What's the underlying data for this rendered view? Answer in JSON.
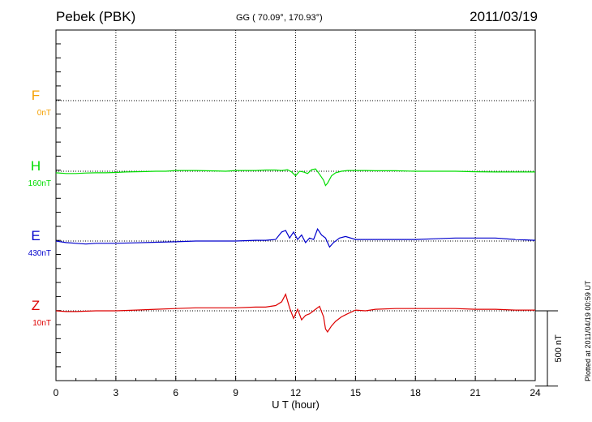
{
  "header": {
    "station": "Pebek (PBK)",
    "coords": "GG ( 70.09°, 170.93°)",
    "date": "2011/03/19"
  },
  "plotted_note": "Plotted at 2011/04/19 00:59 UT",
  "chart_data": {
    "type": "line",
    "xlabel": "U T (hour)",
    "xlim": [
      0,
      24
    ],
    "x_ticks": [
      0,
      3,
      6,
      9,
      12,
      15,
      18,
      21,
      24
    ],
    "grid": true,
    "scale_bar": {
      "label": "500 nT",
      "value_nT": 500
    },
    "series": [
      {
        "name": "F",
        "offset_label": "0nT",
        "color": "#f5a000",
        "x": [],
        "values": []
      },
      {
        "name": "H",
        "offset_label": "160nT",
        "color": "#00dd00",
        "x": [
          0,
          0.5,
          1,
          1.5,
          2,
          2.5,
          3,
          3.5,
          4,
          4.5,
          5,
          5.5,
          6,
          6.5,
          7,
          7.5,
          8,
          8.5,
          9,
          9.5,
          10,
          10.5,
          11,
          11.3,
          11.6,
          11.8,
          12,
          12.2,
          12.4,
          12.6,
          12.8,
          13,
          13.2,
          13.4,
          13.5,
          13.6,
          13.8,
          14,
          14.3,
          14.6,
          15,
          15.5,
          16,
          17,
          18,
          19,
          20,
          21,
          22,
          23,
          24
        ],
        "values": [
          -10,
          -15,
          -15,
          -12,
          -10,
          -10,
          -8,
          -5,
          -3,
          -2,
          0,
          0,
          5,
          5,
          5,
          3,
          2,
          0,
          5,
          5,
          5,
          8,
          8,
          5,
          10,
          -5,
          -30,
          0,
          -5,
          -15,
          10,
          15,
          -20,
          -60,
          -95,
          -80,
          -30,
          -10,
          0,
          5,
          5,
          5,
          3,
          3,
          0,
          0,
          0,
          -3,
          -5,
          -5,
          -5
        ]
      },
      {
        "name": "E",
        "offset_label": "430nT",
        "color": "#0000cc",
        "x": [
          0,
          0.5,
          1,
          1.5,
          2,
          3,
          4,
          5,
          6,
          7,
          8,
          9,
          10,
          10.5,
          11,
          11.3,
          11.5,
          11.7,
          11.9,
          12.1,
          12.3,
          12.5,
          12.7,
          12.9,
          13.1,
          13.3,
          13.5,
          13.7,
          13.9,
          14.2,
          14.5,
          15,
          16,
          17,
          18,
          19,
          20,
          21,
          22,
          23,
          24
        ],
        "values": [
          0,
          -10,
          -15,
          -20,
          -15,
          -15,
          -12,
          -8,
          -5,
          0,
          0,
          0,
          5,
          5,
          10,
          60,
          70,
          20,
          60,
          10,
          40,
          -10,
          20,
          10,
          80,
          40,
          20,
          -40,
          -10,
          20,
          30,
          10,
          10,
          10,
          10,
          15,
          20,
          20,
          20,
          10,
          5
        ]
      },
      {
        "name": "Z",
        "offset_label": "10nT",
        "color": "#dd0000",
        "x": [
          0,
          0.5,
          1,
          2,
          3,
          4,
          5,
          6,
          7,
          8,
          9,
          10,
          10.5,
          11,
          11.3,
          11.5,
          11.7,
          11.9,
          12.1,
          12.3,
          12.5,
          12.7,
          13,
          13.2,
          13.4,
          13.5,
          13.6,
          13.8,
          14,
          14.3,
          14.6,
          15,
          15.5,
          16,
          17,
          18,
          19,
          20,
          21,
          22,
          23,
          24
        ],
        "values": [
          0,
          -5,
          -5,
          0,
          0,
          5,
          10,
          15,
          20,
          20,
          20,
          25,
          25,
          35,
          60,
          110,
          20,
          -50,
          10,
          -60,
          -30,
          -20,
          10,
          30,
          -40,
          -120,
          -140,
          -100,
          -70,
          -40,
          -20,
          5,
          0,
          10,
          15,
          15,
          15,
          15,
          10,
          10,
          5,
          5
        ]
      }
    ]
  }
}
